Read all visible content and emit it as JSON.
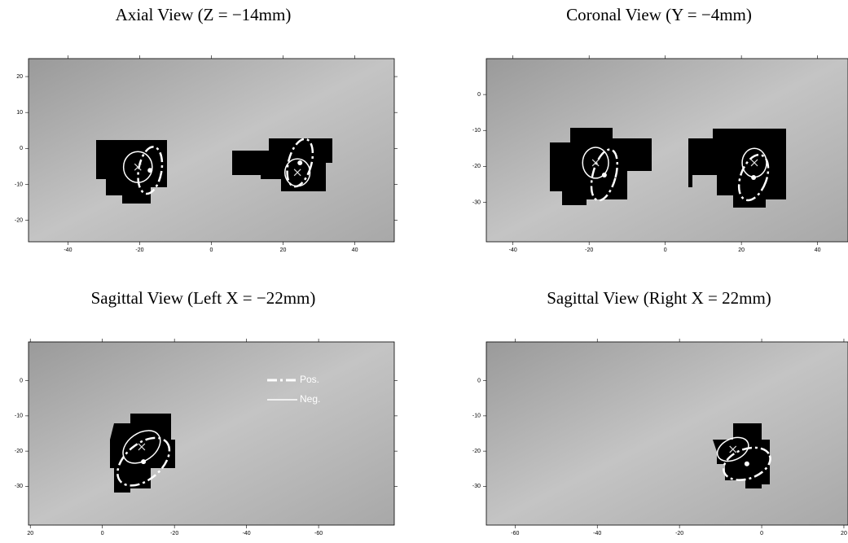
{
  "chart_data": [
    {
      "type": "ellipse-overlay",
      "title": "Axial View (Z = −14mm)",
      "xlim": [
        -51,
        51
      ],
      "ylim": [
        -26,
        25
      ],
      "xticks": [
        -40,
        -20,
        0,
        20,
        40
      ],
      "yticks": [
        -20,
        -10,
        0,
        10,
        20
      ],
      "series": [
        {
          "color": "#ffffff",
          "style": "dashed",
          "x": [
            -17.1,
            24.7
          ],
          "y": [
            -6.1,
            -4.0
          ],
          "rx": [
            3.2,
            3.2
          ],
          "ry": [
            6.6,
            6.8
          ],
          "angle": [
            10,
            15
          ]
        },
        {
          "color": "#ffffff",
          "style": "solid",
          "x": [
            -20.5,
            24.0
          ],
          "y": [
            -5.2,
            -6.7
          ],
          "rx": [
            4,
            3.5
          ],
          "ry": [
            4.3,
            3.8
          ],
          "angle": [
            0,
            0
          ]
        }
      ]
    },
    {
      "type": "ellipse-overlay",
      "title": "Coronal View (Y = −4mm)",
      "xlim": [
        -47,
        48
      ],
      "ylim": [
        -41,
        10
      ],
      "xticks": [
        -40,
        -20,
        0,
        20,
        40
      ],
      "yticks": [
        -30,
        -20,
        -10,
        0
      ],
      "series": [
        {
          "color": "#ffffff",
          "style": "dashed",
          "x": [
            -16.0,
            23.2
          ],
          "y": [
            -22.4,
            -23.1
          ],
          "rx": [
            3,
            3.4
          ],
          "ry": [
            7.3,
            6.6
          ],
          "angle": [
            15,
            20
          ]
        },
        {
          "color": "#ffffff",
          "style": "solid",
          "x": [
            -18.3,
            23.4
          ],
          "y": [
            -19.0,
            -19.0
          ],
          "rx": [
            3.4,
            3.2
          ],
          "ry": [
            4.3,
            4
          ],
          "angle": [
            0,
            0
          ]
        }
      ]
    },
    {
      "type": "ellipse-overlay",
      "title": "Sagittal View (Left X = −22mm)",
      "xlim": [
        20.5,
        -81
      ],
      "ylim": [
        -41,
        11
      ],
      "xticks": [
        20,
        0,
        -20,
        -40,
        -60
      ],
      "yticks": [
        -30,
        -20,
        -10,
        0
      ],
      "legend": "top-right",
      "series": [
        {
          "name": "Pos.",
          "color": "#ffffff",
          "style": "dashed",
          "x": [
            -11.4
          ],
          "y": [
            -23.0
          ],
          "rx": [
            8.4
          ],
          "ry": [
            5.1
          ],
          "angle": [
            -40
          ]
        },
        {
          "name": "Neg.",
          "color": "#ffffff",
          "style": "solid",
          "x": [
            -10.9
          ],
          "y": [
            -18.8
          ],
          "rx": [
            5.7
          ],
          "ry": [
            3.9
          ],
          "angle": [
            -35
          ]
        }
      ]
    },
    {
      "type": "ellipse-overlay",
      "title": "Sagittal View (Right X = 22mm)",
      "xlim": [
        -67,
        21
      ],
      "ylim": [
        -41,
        11
      ],
      "xticks": [
        -60,
        -40,
        -20,
        0,
        20
      ],
      "yticks": [
        -30,
        -20,
        -10,
        0
      ],
      "series": [
        {
          "color": "#ffffff",
          "style": "dashed",
          "x": [
            -3.6
          ],
          "y": [
            -23.6
          ],
          "rx": [
            5.9
          ],
          "ry": [
            4.2
          ],
          "angle": [
            -20
          ]
        },
        {
          "color": "#ffffff",
          "style": "solid",
          "x": [
            -7.0
          ],
          "y": [
            -19.5
          ],
          "rx": [
            4
          ],
          "ry": [
            3
          ],
          "angle": [
            -25
          ]
        }
      ]
    }
  ]
}
